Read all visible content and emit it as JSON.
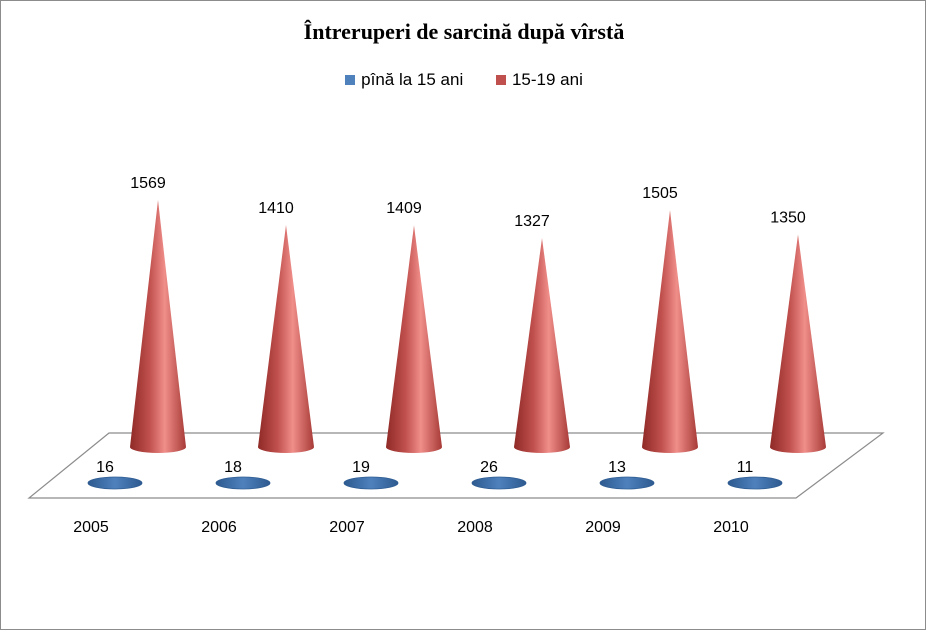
{
  "chart_data": {
    "type": "bar",
    "title": "Întreruperi de sarcină după vîrstă",
    "categories": [
      "2005",
      "2006",
      "2007",
      "2008",
      "2009",
      "2010"
    ],
    "series": [
      {
        "name": "pînă la 15 ani",
        "values": [
          16,
          18,
          19,
          26,
          13,
          11
        ],
        "color": "#4f81bd"
      },
      {
        "name": "15-19 ani",
        "values": [
          1569,
          1410,
          1409,
          1327,
          1505,
          1350
        ],
        "color": "#c0504d"
      }
    ],
    "bar_shape": "cone",
    "perspective": "3d",
    "legend_position": "top",
    "ylim": [
      0,
      1600
    ],
    "grid": false,
    "xlabel": "",
    "ylabel": ""
  }
}
